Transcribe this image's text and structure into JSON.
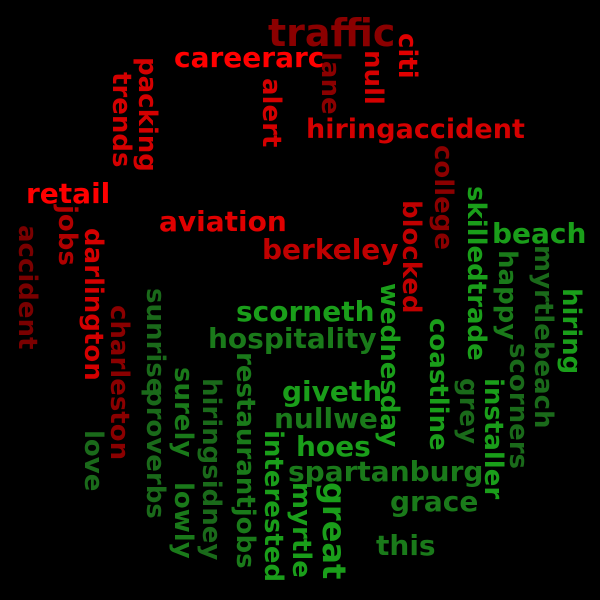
{
  "words": [
    {
      "text": "traffic",
      "color": "#8b0000"
    },
    {
      "text": "careerarc",
      "color": "#ff0000"
    },
    {
      "text": "citi",
      "color": "#e00000"
    },
    {
      "text": "null",
      "color": "#d40000"
    },
    {
      "text": "lane",
      "color": "#8b0000"
    },
    {
      "text": "alert",
      "color": "#d40000"
    },
    {
      "text": "trends",
      "color": "#d40000"
    },
    {
      "text": "packing",
      "color": "#d40000"
    },
    {
      "text": "hiringaccident",
      "color": "#d40000"
    },
    {
      "text": "college",
      "color": "#8b0000"
    },
    {
      "text": "retail",
      "color": "#ff0000"
    },
    {
      "text": "jobs",
      "color": "#b00000"
    },
    {
      "text": "aviation",
      "color": "#e00000"
    },
    {
      "text": "berkeley",
      "color": "#c00000"
    },
    {
      "text": "blocked",
      "color": "#c00000"
    },
    {
      "text": "skilledtrade",
      "color": "#1a9e1a"
    },
    {
      "text": "beach",
      "color": "#1a9e1a"
    },
    {
      "text": "accident",
      "color": "#7a0000"
    },
    {
      "text": "darlington",
      "color": "#d40000"
    },
    {
      "text": "charleston",
      "color": "#8b0000"
    },
    {
      "text": "happy",
      "color": "#1a7a1a"
    },
    {
      "text": "hiring",
      "color": "#1a9e1a"
    },
    {
      "text": "sunrise",
      "color": "#1a6a1a"
    },
    {
      "text": "scorneth",
      "color": "#1a9e1a"
    },
    {
      "text": "wednesday",
      "color": "#1a9e1a"
    },
    {
      "text": "hospitality",
      "color": "#1a7a1a"
    },
    {
      "text": "coastline",
      "color": "#1a9e1a"
    },
    {
      "text": "scorners",
      "color": "#1a6a1a"
    },
    {
      "text": "myrtlebeach",
      "color": "#1a6a1a"
    },
    {
      "text": "proverbs",
      "color": "#1a6a1a"
    },
    {
      "text": "lowly",
      "color": "#1a7a1a"
    },
    {
      "text": "surely",
      "color": "#1a7a1a"
    },
    {
      "text": "restaurantjobs",
      "color": "#1a7a1a"
    },
    {
      "text": "giveth",
      "color": "#1a9e1a"
    },
    {
      "text": "nullwe",
      "color": "#1a7a1a"
    },
    {
      "text": "grey",
      "color": "#1a6a1a"
    },
    {
      "text": "installer",
      "color": "#1a9e1a"
    },
    {
      "text": "love",
      "color": "#1a6a1a"
    },
    {
      "text": "hiringsidney",
      "color": "#1a6a1a"
    },
    {
      "text": "hoes",
      "color": "#1a9e1a"
    },
    {
      "text": "spartanburg",
      "color": "#1a7a1a"
    },
    {
      "text": "interested",
      "color": "#1a9e1a"
    },
    {
      "text": "myrtle",
      "color": "#1a9e1a"
    },
    {
      "text": "great",
      "color": "#1a9e1a"
    },
    {
      "text": "grace",
      "color": "#1a7a1a"
    },
    {
      "text": "this",
      "color": "#1a7a1a"
    }
  ]
}
